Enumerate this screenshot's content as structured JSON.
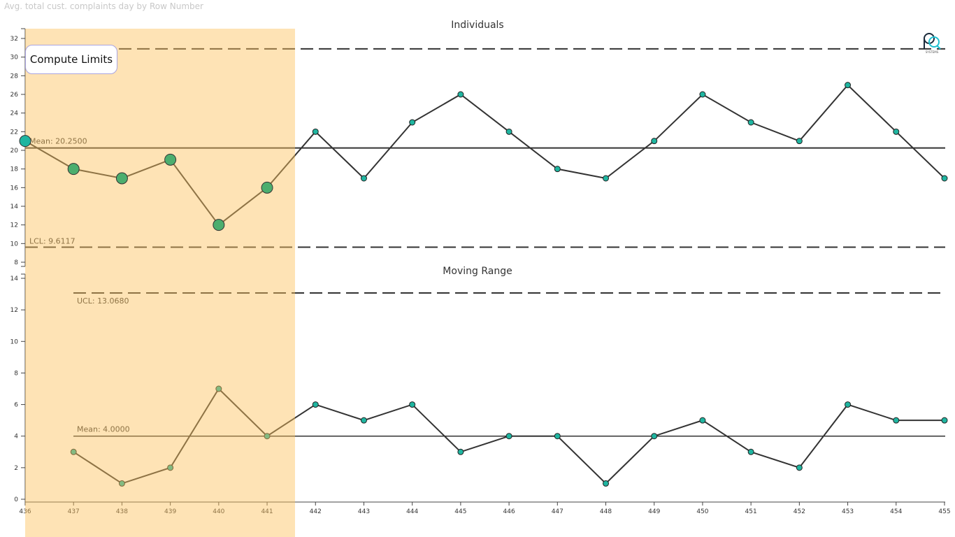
{
  "visual_title": "Avg. total cust. complaints day by Row Number",
  "compute_button": "Compute Limits",
  "logo_text": "PQ SYSTEMS",
  "colors": {
    "highlight": "#fce3b2",
    "point": "#1fb5a0",
    "selected_point": "#4cae6e",
    "line": "#333333"
  },
  "chart_data": [
    {
      "type": "line",
      "title": "Individuals",
      "x": [
        436,
        437,
        438,
        439,
        440,
        441,
        442,
        443,
        444,
        445,
        446,
        447,
        448,
        449,
        450,
        451,
        452,
        453,
        454,
        455
      ],
      "values": [
        21,
        18,
        17,
        19,
        12,
        16,
        22,
        17,
        23,
        26,
        22,
        18,
        17,
        21,
        26,
        23,
        21,
        27,
        22,
        17
      ],
      "mean": 20.25,
      "ucl": 30.8883,
      "lcl": 9.6117,
      "mean_label": "Mean: 20.2500",
      "lcl_label": "LCL: 9.6117",
      "ylim": [
        7.5,
        33
      ],
      "yticks": [
        8,
        10,
        12,
        14,
        16,
        18,
        20,
        22,
        24,
        26,
        28,
        30,
        32
      ],
      "selected_range": [
        436,
        441
      ]
    },
    {
      "type": "line",
      "title": "Moving Range",
      "x": [
        437,
        438,
        439,
        440,
        441,
        442,
        443,
        444,
        445,
        446,
        447,
        448,
        449,
        450,
        451,
        452,
        453,
        454,
        455
      ],
      "values": [
        3,
        1,
        2,
        7,
        4,
        6,
        5,
        6,
        3,
        4,
        4,
        1,
        4,
        5,
        3,
        2,
        6,
        5,
        5
      ],
      "mean": 4.0,
      "ucl": 13.068,
      "mean_label": "Mean: 4.0000",
      "ucl_label": "UCL: 13.0680",
      "ylim": [
        0,
        14.5
      ],
      "yticks": [
        0,
        2,
        4,
        6,
        8,
        10,
        12,
        14
      ],
      "xticks": [
        436,
        437,
        438,
        439,
        440,
        441,
        442,
        443,
        444,
        445,
        446,
        447,
        448,
        449,
        450,
        451,
        452,
        453,
        454,
        455
      ]
    }
  ]
}
